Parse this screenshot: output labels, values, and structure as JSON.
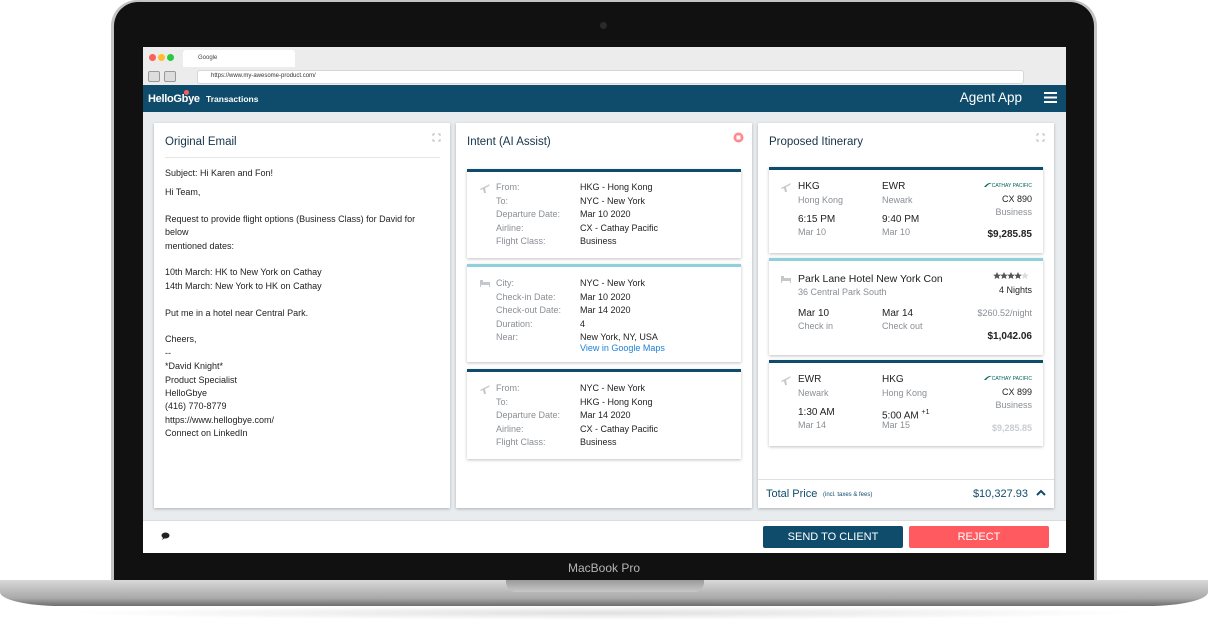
{
  "laptop_label": "MacBook Pro",
  "browser": {
    "tab_title": "Google",
    "url": "https://www.my-awesome-product.com/"
  },
  "header": {
    "logo": "HelloGbye",
    "nav": "Transactions",
    "app_title": "Agent App"
  },
  "email": {
    "title": "Original Email",
    "paragraphs": [
      [
        "Subject: Hi Karen and Fon!",
        "Hi Team,"
      ],
      [
        "Request to provide flight options (Business Class) for David for",
        "below",
        "mentioned dates:"
      ],
      [
        "10th March: HK to New York on Cathay",
        "14th March: New York to HK on Cathay"
      ],
      [
        "Put me in a hotel near Central Park."
      ],
      [
        "Cheers,",
        "--",
        "*David Knight*",
        "Product Specialist",
        "HelloGbye",
        "(416) 770-8779",
        "https://www.hellogbye.com/",
        "Connect on LinkedIn"
      ]
    ]
  },
  "intent": {
    "title": "Intent (AI Assist)",
    "outbound": {
      "rows": [
        {
          "label": "From:",
          "value": "HKG - Hong Kong"
        },
        {
          "label": "To:",
          "value": "NYC - New York"
        },
        {
          "label": "Departure Date:",
          "value": "Mar 10 2020"
        },
        {
          "label": "Airline:",
          "value": "CX - Cathay Pacific"
        },
        {
          "label": "Flight Class:",
          "value": "Business"
        }
      ]
    },
    "hotel": {
      "rows": [
        {
          "label": "City:",
          "value": "NYC - New York"
        },
        {
          "label": "Check-in Date:",
          "value": "Mar 10 2020"
        },
        {
          "label": "Check-out Date:",
          "value": "Mar 14 2020"
        },
        {
          "label": "Duration:",
          "value": "4"
        },
        {
          "label": "Near:",
          "value": "New York, NY, USA"
        }
      ],
      "link": "View in Google Maps"
    },
    "return": {
      "rows": [
        {
          "label": "From:",
          "value": "NYC - New York"
        },
        {
          "label": "To:",
          "value": "HKG - Hong Kong"
        },
        {
          "label": "Departure Date:",
          "value": "Mar 14 2020"
        },
        {
          "label": "Airline:",
          "value": "CX - Cathay Pacific"
        },
        {
          "label": "Flight Class:",
          "value": "Business"
        }
      ]
    }
  },
  "itinerary": {
    "title": "Proposed Itinerary",
    "outbound": {
      "from_code": "HKG",
      "from_city": "Hong Kong",
      "to_code": "EWR",
      "to_city": "Newark",
      "depart_time": "6:15 PM",
      "depart_date": "Mar 10",
      "arrive_time": "9:40 PM",
      "arrive_date": "Mar 10",
      "airline": "CATHAY PACIFIC",
      "flight_number": "CX 890",
      "cabin": "Business",
      "price": "$9,285.85"
    },
    "hotel": {
      "name": "Park Lane Hotel New York Con",
      "address": "36 Central Park South",
      "rating": 4,
      "nights": "4 Nights",
      "check_in_date": "Mar 10",
      "check_in_label": "Check in",
      "check_out_date": "Mar 14",
      "check_out_label": "Check out",
      "rate": "$260.52/night",
      "price": "$1,042.06"
    },
    "return": {
      "from_code": "EWR",
      "from_city": "Newark",
      "to_code": "HKG",
      "to_city": "Hong Kong",
      "depart_time": "1:30 AM",
      "depart_date": "Mar 14",
      "arrive_time": "5:00 AM",
      "arrive_day_offset": "+1",
      "arrive_date": "Mar 15",
      "airline": "CATHAY PACIFIC",
      "flight_number": "CX 899",
      "cabin": "Business",
      "price": "$9,285.85"
    },
    "total": {
      "label": "Total Price",
      "note": "(incl. taxes & fees)",
      "amount": "$10,327.93"
    }
  },
  "footer": {
    "send": "SEND TO CLIENT",
    "reject": "REJECT"
  }
}
